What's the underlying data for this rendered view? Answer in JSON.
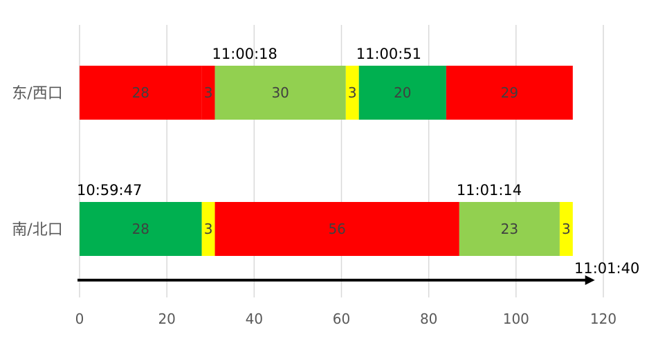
{
  "chart_data": {
    "type": "bar",
    "orientation": "horizontal",
    "stacked": true,
    "categories": [
      "东/西口",
      "南/北口"
    ],
    "xlim": [
      0,
      120
    ],
    "x_ticks": [
      0,
      20,
      40,
      60,
      80,
      100,
      120
    ],
    "grid": "vertical",
    "legend": "none",
    "title": "",
    "xlabel": "",
    "ylabel": "",
    "rows": [
      {
        "category": "东/西口",
        "segments": [
          {
            "value": 28,
            "label": "28",
            "color": "#ff0000"
          },
          {
            "value": 3,
            "label": "3",
            "color": "#ff0000"
          },
          {
            "value": 30,
            "label": "30",
            "color": "#92d050"
          },
          {
            "value": 3,
            "label": "3",
            "color": "#ffff00"
          },
          {
            "value": 20,
            "label": "20",
            "color": "#00b050"
          },
          {
            "value": 29,
            "label": "29",
            "color": "#ff0000"
          }
        ]
      },
      {
        "category": "南/北口",
        "segments": [
          {
            "value": 28,
            "label": "28",
            "color": "#00b050"
          },
          {
            "value": 3,
            "label": "3",
            "color": "#ffff00"
          },
          {
            "value": 56,
            "label": "56",
            "color": "#ff0000"
          },
          {
            "value": 23,
            "label": "23",
            "color": "#92d050"
          },
          {
            "value": 3,
            "label": "3",
            "color": "#ffff00"
          }
        ]
      }
    ],
    "annotations": [
      {
        "text": "11:00:18",
        "x": 31,
        "row": 0
      },
      {
        "text": "11:00:51",
        "x": 64,
        "row": 0
      },
      {
        "text": "10:59:47",
        "x": 0,
        "row": 1
      },
      {
        "text": "11:01:14",
        "x": 87,
        "row": 1
      }
    ],
    "time_arrow": {
      "start": 0,
      "end": 119,
      "end_label": "11:01:40"
    }
  }
}
